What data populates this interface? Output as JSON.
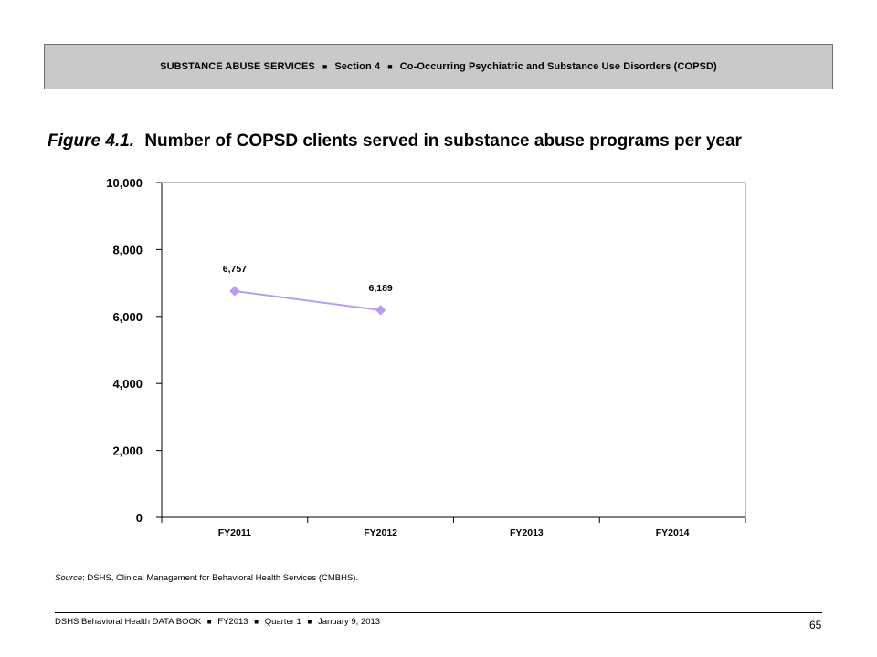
{
  "header": {
    "parts": [
      "SUBSTANCE ABUSE SERVICES",
      "Section 4",
      "Co-Occurring Psychiatric and Substance Use Disorders (COPSD)"
    ],
    "separator": "■"
  },
  "figure": {
    "number": "Figure 4.1.",
    "title": "Number of COPSD clients served in substance abuse programs per year"
  },
  "chart_data": {
    "type": "line",
    "categories": [
      "FY2011",
      "FY2012",
      "FY2013",
      "FY2014"
    ],
    "series": [
      {
        "values": [
          6757,
          6189,
          null,
          null
        ],
        "labels": [
          "6,757",
          "6,189"
        ],
        "color": "#b79cf0"
      }
    ],
    "ylim": [
      0,
      10000
    ],
    "yticks": [
      0,
      2000,
      4000,
      6000,
      8000,
      10000
    ],
    "ytick_labels": [
      "0",
      "2,000",
      "4,000",
      "6,000",
      "8,000",
      "10,000"
    ],
    "xlabel": "",
    "ylabel": "",
    "grid": false,
    "legend": "none"
  },
  "source": {
    "label": "Source",
    "text": ": DSHS, Clinical Management for Behavioral Health Services (CMBHS)."
  },
  "footer": {
    "parts": [
      "DSHS Behavioral Health DATA BOOK",
      "FY2013",
      "Quarter 1",
      "January  9, 2013"
    ],
    "separator": "■",
    "page": "65"
  }
}
